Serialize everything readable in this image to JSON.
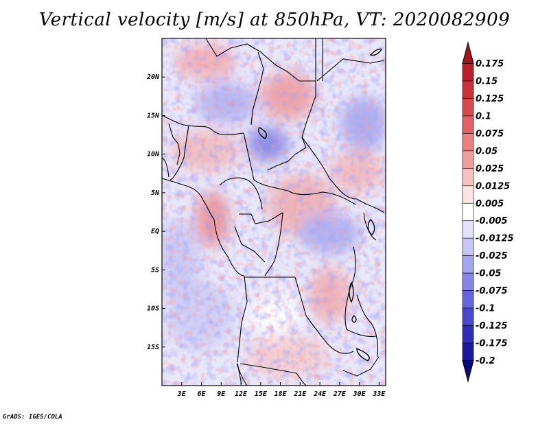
{
  "title": "Vertical velocity [m/s] at 850hPa, VT: 2020082909",
  "credit": "GrADS: IGES/COLA",
  "map": {
    "lon_range": [
      0,
      34
    ],
    "lat_range": [
      -20,
      25
    ],
    "lat_ticks": [
      {
        "value": 20,
        "label": "20N"
      },
      {
        "value": 15,
        "label": "15N"
      },
      {
        "value": 10,
        "label": "10N"
      },
      {
        "value": 5,
        "label": "5N"
      },
      {
        "value": 0,
        "label": "EQ"
      },
      {
        "value": -5,
        "label": "5S"
      },
      {
        "value": -10,
        "label": "10S"
      },
      {
        "value": -15,
        "label": "15S"
      }
    ],
    "lon_ticks": [
      {
        "value": 3,
        "label": "3E"
      },
      {
        "value": 6,
        "label": "6E"
      },
      {
        "value": 9,
        "label": "9E"
      },
      {
        "value": 12,
        "label": "12E"
      },
      {
        "value": 15,
        "label": "15E"
      },
      {
        "value": 18,
        "label": "18E"
      },
      {
        "value": 21,
        "label": "21E"
      },
      {
        "value": 24,
        "label": "24E"
      },
      {
        "value": 27,
        "label": "27E"
      },
      {
        "value": 30,
        "label": "30E"
      },
      {
        "value": 33,
        "label": "33E"
      }
    ]
  },
  "colorbar": {
    "labels": [
      "0.175",
      "0.15",
      "0.125",
      "0.1",
      "0.075",
      "0.05",
      "0.025",
      "0.0125",
      "0.005",
      "-0.005",
      "-0.0125",
      "-0.025",
      "-0.05",
      "-0.075",
      "-0.1",
      "-0.125",
      "-0.175",
      "-0.2"
    ],
    "colors": [
      "#a0141e",
      "#b8202a",
      "#c8333a",
      "#d6494c",
      "#e06266",
      "#e9807f",
      "#f09f9c",
      "#f6c2bf",
      "#fce4e2",
      "#ffffff",
      "#e2e2fb",
      "#c7c7f5",
      "#a5a5ee",
      "#8585e6",
      "#6565dc",
      "#4848cc",
      "#2e2eb6",
      "#1a1a9a",
      "#0a0a7a"
    ]
  }
}
